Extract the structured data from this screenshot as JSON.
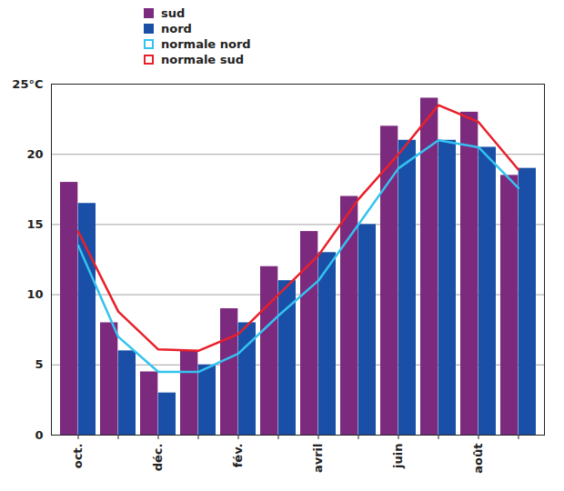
{
  "chart_data": {
    "type": "bar",
    "categories": [
      "oct.",
      null,
      "déc.",
      null,
      "fév.",
      null,
      "avril",
      null,
      "juin",
      null,
      "août",
      null
    ],
    "series": [
      {
        "name": "sud",
        "type": "bar",
        "color": "#7b2a7e",
        "values": [
          18,
          8,
          4.5,
          6,
          9,
          12,
          14.5,
          17,
          22,
          24,
          23,
          18.5
        ]
      },
      {
        "name": "nord",
        "type": "bar",
        "color": "#1a4fa8",
        "values": [
          16.5,
          6,
          3,
          5,
          8,
          11,
          13,
          15,
          21,
          21,
          20.5,
          19
        ]
      },
      {
        "name": "normale nord",
        "type": "line",
        "color": "#33c3f0",
        "values": [
          13.5,
          7,
          4.5,
          4.5,
          5.8,
          8.5,
          11,
          15,
          19,
          21,
          20.5,
          17.6
        ]
      },
      {
        "name": "normale sud",
        "type": "line",
        "color": "#e8202a",
        "values": [
          14.5,
          8.8,
          6.1,
          6,
          7.2,
          10,
          12.8,
          16.8,
          20,
          23.5,
          22.3,
          18.9
        ]
      }
    ],
    "ylim": [
      0,
      25
    ],
    "yticks": [
      0,
      5,
      10,
      15,
      20,
      {
        "value": 25,
        "label": "25°C"
      }
    ],
    "grid": true,
    "legend": "top-left"
  }
}
